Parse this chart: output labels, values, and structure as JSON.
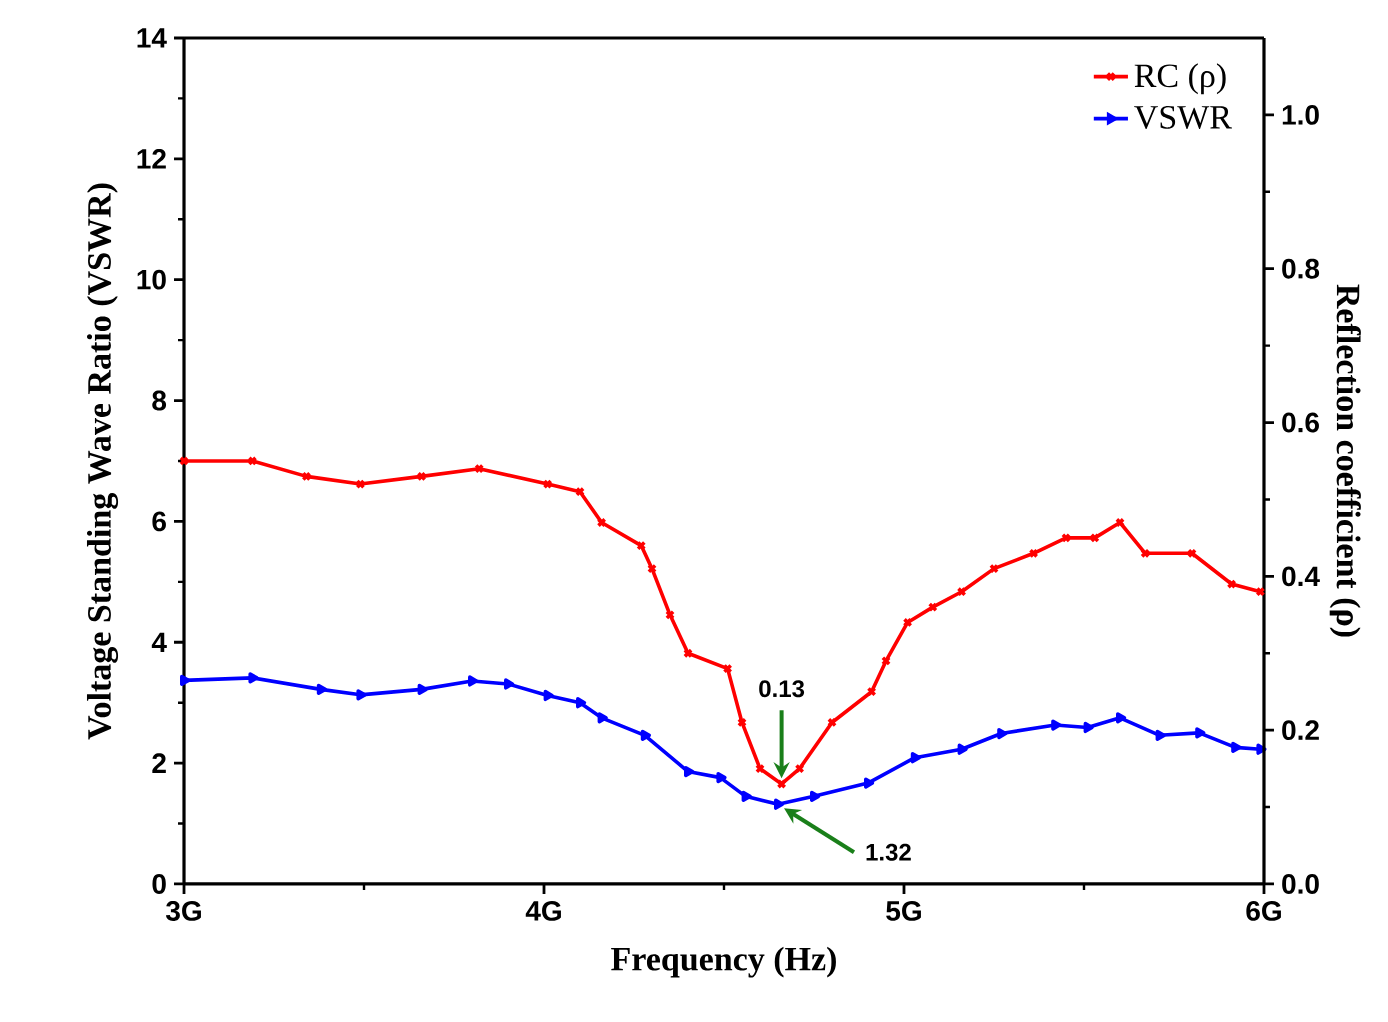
{
  "chart_data": {
    "type": "line",
    "xlabel": "Frequency (Hz)",
    "ylabel": "Voltage Standing Wave Ratio (VSWR)",
    "y2label": "Reflection coefficient (ρ)",
    "xlim": [
      3,
      6
    ],
    "xticks": [
      {
        "value": 3,
        "label": "3G"
      },
      {
        "value": 4,
        "label": "4G"
      },
      {
        "value": 5,
        "label": "5G"
      },
      {
        "value": 6,
        "label": "6G"
      }
    ],
    "ylim": [
      0,
      14
    ],
    "yticks": [
      0,
      2,
      4,
      6,
      8,
      10,
      12,
      14
    ],
    "y2lim": [
      0,
      1.1
    ],
    "y2ticks": [
      {
        "value": 0,
        "label": "0.0"
      },
      0.2,
      0.4,
      0.6,
      0.8,
      {
        "value": 1,
        "label": "1.0"
      }
    ],
    "legend": "top right",
    "line_style": "solid",
    "series": [
      {
        "name": "VSWR",
        "color": "#0000ff",
        "marker": "triangle",
        "x": [
          3.0,
          3.19,
          3.38,
          3.49,
          3.66,
          3.8,
          3.9,
          4.01,
          4.1,
          4.16,
          4.28,
          4.4,
          4.49,
          4.56,
          4.65,
          4.75,
          4.9,
          5.03,
          5.16,
          5.27,
          5.42,
          5.51,
          5.6,
          5.71,
          5.82,
          5.92,
          5.99
        ],
        "values": [
          3.37,
          3.41,
          3.22,
          3.13,
          3.22,
          3.36,
          3.31,
          3.12,
          3.0,
          2.75,
          2.46,
          1.86,
          1.76,
          1.45,
          1.32,
          1.45,
          1.67,
          2.09,
          2.23,
          2.49,
          2.63,
          2.59,
          2.75,
          2.46,
          2.5,
          2.26,
          2.23
        ]
      },
      {
        "name": "RC (ρ)",
        "color": "#ff0000",
        "marker": "cross",
        "axis": "y2",
        "x": [
          3.0,
          3.19,
          3.34,
          3.49,
          3.66,
          3.82,
          4.01,
          4.1,
          4.16,
          4.27,
          4.3,
          4.35,
          4.4,
          4.51,
          4.55,
          4.6,
          4.66,
          4.71,
          4.8,
          4.91,
          4.95,
          5.01,
          5.08,
          5.16,
          5.25,
          5.36,
          5.45,
          5.53,
          5.6,
          5.67,
          5.8,
          5.91,
          5.99
        ],
        "values": [
          0.55,
          0.55,
          0.53,
          0.52,
          0.53,
          0.54,
          0.52,
          0.51,
          0.47,
          0.44,
          0.41,
          0.35,
          0.3,
          0.28,
          0.21,
          0.15,
          0.13,
          0.15,
          0.21,
          0.25,
          0.29,
          0.34,
          0.36,
          0.38,
          0.41,
          0.43,
          0.45,
          0.45,
          0.47,
          0.43,
          0.43,
          0.39,
          0.38
        ]
      }
    ],
    "annotations": [
      {
        "text": "0.13",
        "x": 4.66,
        "y": 1.65
      },
      {
        "text": "1.32",
        "x": 4.65,
        "y": 1.32
      }
    ]
  }
}
